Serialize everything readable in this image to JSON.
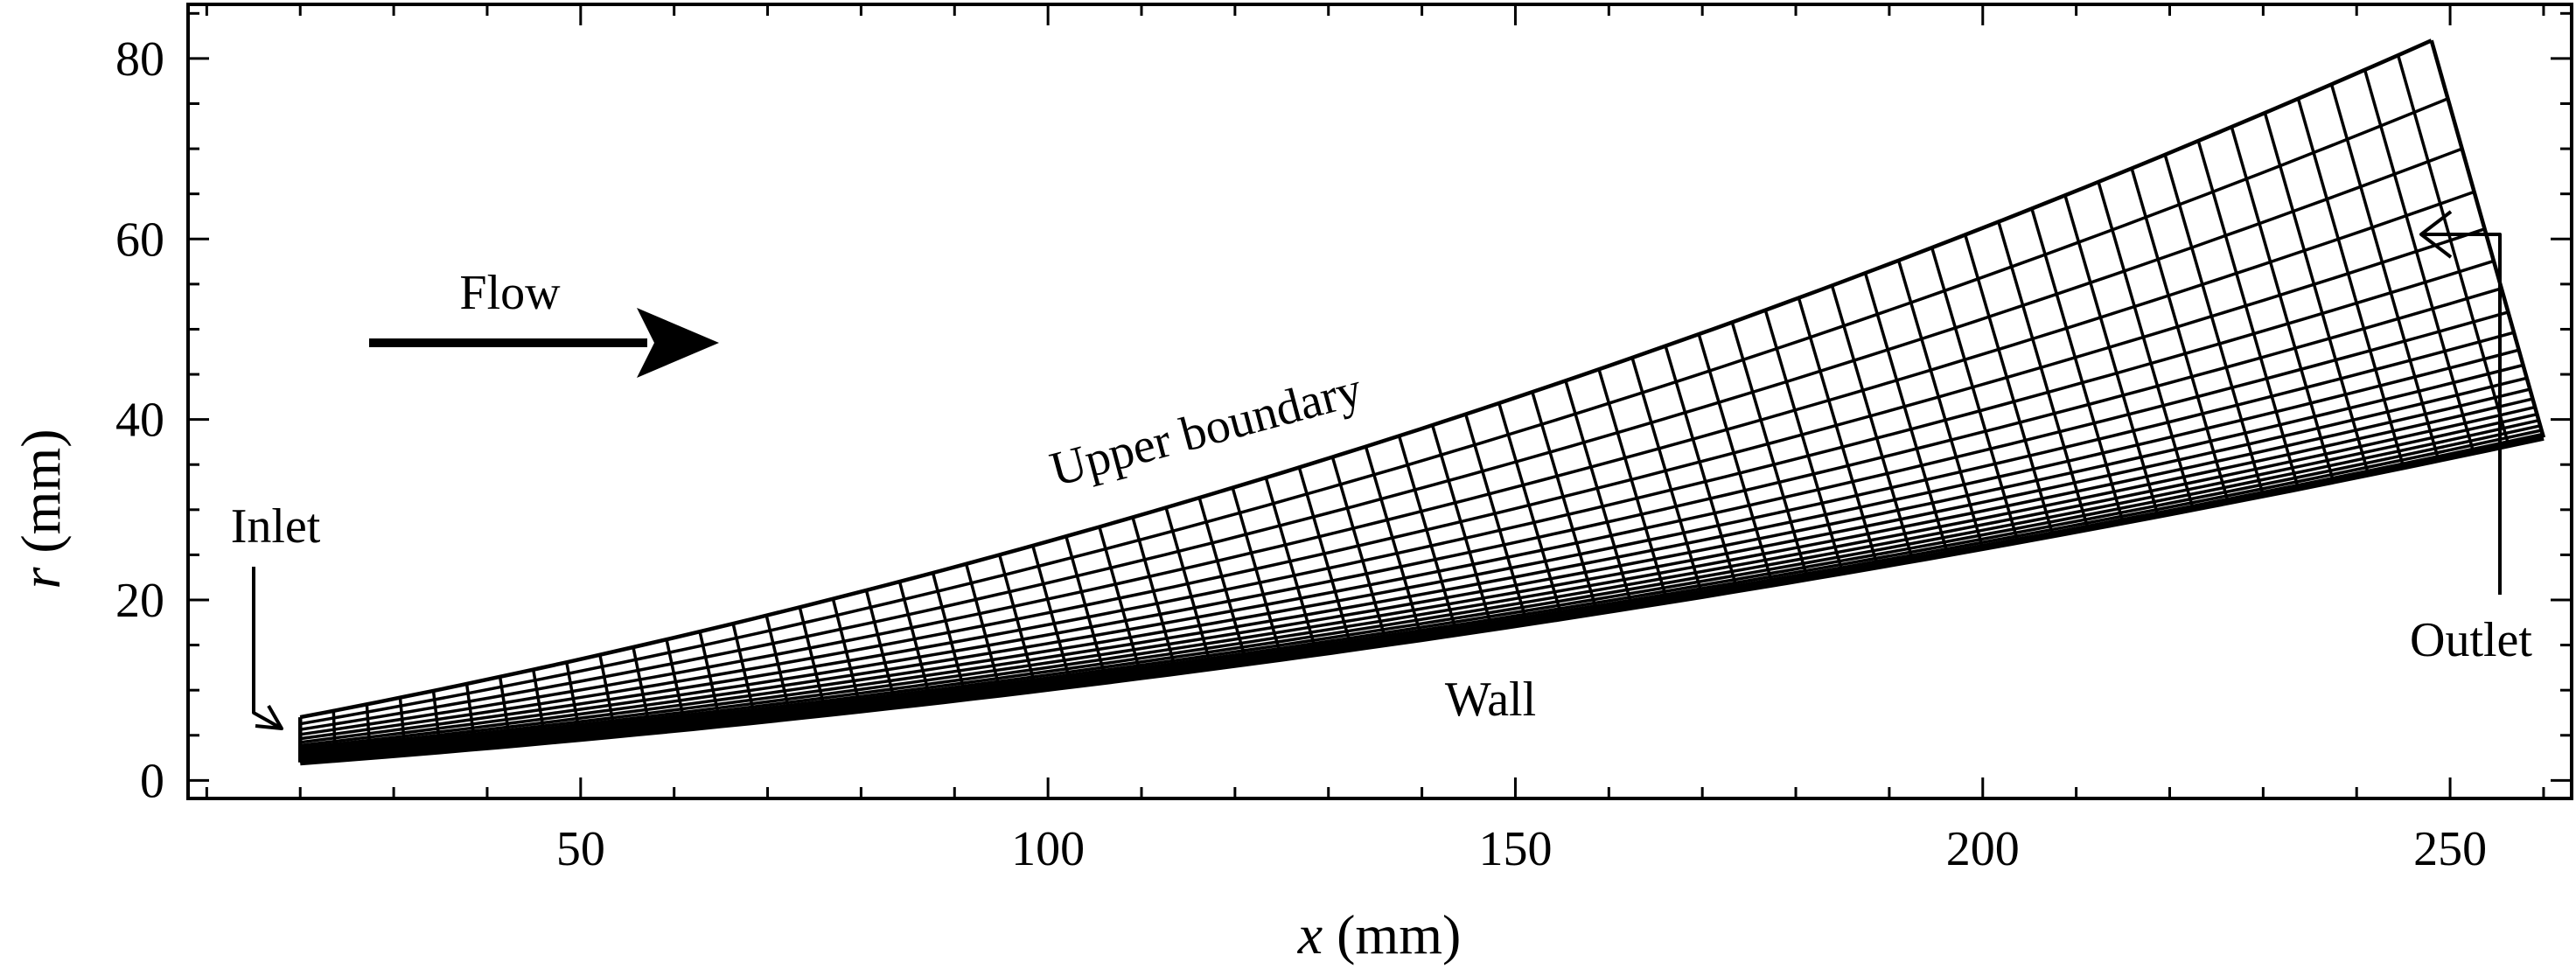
{
  "chart_data": {
    "type": "diagram",
    "xlabel": {
      "var": "x",
      "unit": " (mm)"
    },
    "ylabel": {
      "var": "r",
      "unit": " (mm)"
    },
    "xlim": [
      8,
      263
    ],
    "ylim": [
      -2,
      86
    ],
    "x_ticks": [
      50,
      100,
      150,
      200,
      250
    ],
    "y_ticks": [
      0,
      20,
      40,
      60,
      80
    ],
    "x_minor_step": 10,
    "y_minor_step": 5,
    "grid": false,
    "mesh": {
      "columns": 64,
      "rows": 20,
      "row_clustering": "toward-wall",
      "wall": {
        "x_start": 20,
        "r_start": 2,
        "x_end": 260,
        "r_end": 38,
        "shape": "convex-curve"
      },
      "upper_boundary": {
        "x_start": 20,
        "r_start": 7,
        "x_end": 248,
        "r_end": 82,
        "shape": "convex-curve"
      }
    },
    "annotations": {
      "flow": "Flow",
      "upper_boundary": "Upper boundary",
      "inlet": "Inlet",
      "wall": "Wall",
      "outlet": "Outlet"
    }
  }
}
